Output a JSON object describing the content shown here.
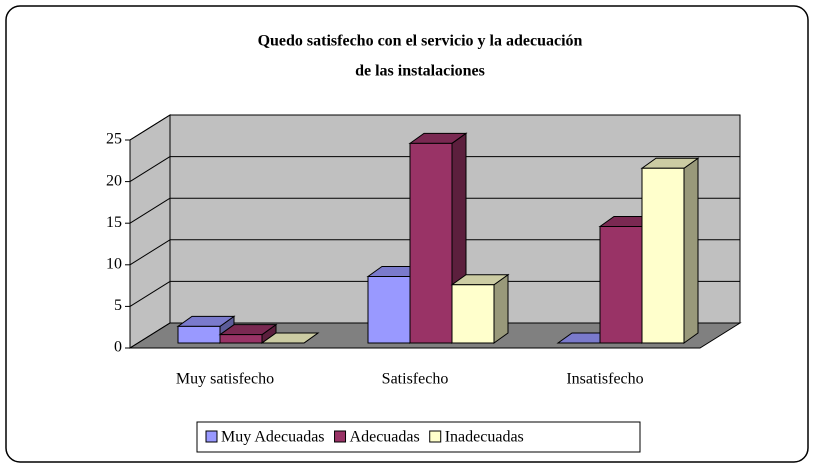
{
  "chart_data": {
    "type": "bar3d",
    "title": [
      "Quedo satisfecho con el servicio y la adecuación",
      "de las instalaciones"
    ],
    "categories": [
      "Muy satisfecho",
      "Satisfecho",
      "Insatisfecho"
    ],
    "series": [
      {
        "name": "Muy Adecuadas",
        "color": "#9999ff",
        "values": [
          2,
          8,
          0
        ]
      },
      {
        "name": "Adecuadas",
        "color": "#993366",
        "values": [
          1,
          24,
          14
        ]
      },
      {
        "name": "Inadecuadas",
        "color": "#ffffcc",
        "values": [
          0,
          7,
          21
        ]
      }
    ],
    "ylim": [
      0,
      25
    ],
    "yticks": [
      0,
      5,
      10,
      15,
      20,
      25
    ],
    "grid": true,
    "legend": "bottom"
  }
}
